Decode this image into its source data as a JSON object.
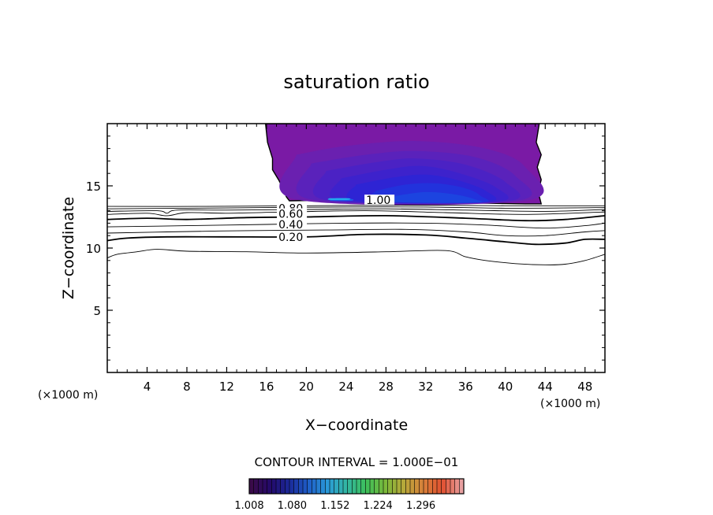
{
  "chart_data": {
    "type": "contour",
    "title": "saturation ratio",
    "xlabel": "X−coordinate",
    "ylabel": "Z−coordinate",
    "x_unit": "(×1000 m)",
    "y_unit": "(×1000 m)",
    "xlim": [
      0,
      50
    ],
    "ylim": [
      0,
      20
    ],
    "x_ticks": [
      "4",
      "8",
      "12",
      "16",
      "20",
      "24",
      "28",
      "32",
      "36",
      "40",
      "44",
      "48"
    ],
    "y_ticks": [
      "5",
      "10",
      "15"
    ],
    "contour_interval_text": "CONTOUR INTERVAL = 1.000E−01",
    "contour_labels": [
      "0.80",
      "0.60",
      "0.40",
      "0.20",
      "1.00"
    ],
    "line_contours": [
      {
        "level": 0.1,
        "weight": "thin",
        "points": [
          [
            0,
            9.2
          ],
          [
            1,
            9.5
          ],
          [
            3,
            9.7
          ],
          [
            5,
            9.9
          ],
          [
            8,
            9.75
          ],
          [
            14,
            9.7
          ],
          [
            20,
            9.6
          ],
          [
            28,
            9.7
          ],
          [
            34,
            9.8
          ],
          [
            36,
            9.3
          ],
          [
            38,
            9.0
          ],
          [
            41,
            8.75
          ],
          [
            44,
            8.65
          ],
          [
            46,
            8.7
          ],
          [
            48,
            9.0
          ],
          [
            50,
            9.5
          ]
        ]
      },
      {
        "level": 0.2,
        "weight": "thick",
        "points": [
          [
            0,
            10.6
          ],
          [
            2,
            10.8
          ],
          [
            6,
            10.9
          ],
          [
            12,
            10.9
          ],
          [
            20,
            10.9
          ],
          [
            26,
            11.1
          ],
          [
            32,
            11.05
          ],
          [
            36,
            10.8
          ],
          [
            40,
            10.5
          ],
          [
            43,
            10.3
          ],
          [
            46,
            10.4
          ],
          [
            48,
            10.7
          ],
          [
            50,
            10.7
          ]
        ]
      },
      {
        "level": 0.3,
        "weight": "thin",
        "points": [
          [
            0,
            11.2
          ],
          [
            6,
            11.3
          ],
          [
            14,
            11.4
          ],
          [
            22,
            11.45
          ],
          [
            30,
            11.5
          ],
          [
            36,
            11.3
          ],
          [
            40,
            11.0
          ],
          [
            44,
            11.0
          ],
          [
            48,
            11.3
          ],
          [
            50,
            11.4
          ]
        ]
      },
      {
        "level": 0.4,
        "weight": "thin",
        "points": [
          [
            0,
            11.7
          ],
          [
            8,
            11.8
          ],
          [
            16,
            11.9
          ],
          [
            24,
            12.0
          ],
          [
            32,
            12.0
          ],
          [
            38,
            11.85
          ],
          [
            44,
            11.6
          ],
          [
            48,
            11.8
          ],
          [
            50,
            12.0
          ]
        ]
      },
      {
        "level": 0.5,
        "weight": "thick",
        "points": [
          [
            0,
            12.3
          ],
          [
            4,
            12.4
          ],
          [
            8,
            12.3
          ],
          [
            14,
            12.45
          ],
          [
            20,
            12.5
          ],
          [
            28,
            12.6
          ],
          [
            36,
            12.4
          ],
          [
            42,
            12.2
          ],
          [
            46,
            12.3
          ],
          [
            50,
            12.6
          ]
        ]
      },
      {
        "level": 0.6,
        "weight": "thin",
        "points": [
          [
            0,
            12.7
          ],
          [
            4,
            12.8
          ],
          [
            6,
            12.6
          ],
          [
            8,
            12.85
          ],
          [
            12,
            12.8
          ],
          [
            18,
            12.9
          ],
          [
            26,
            13.0
          ],
          [
            34,
            12.85
          ],
          [
            42,
            12.7
          ],
          [
            50,
            12.9
          ]
        ]
      },
      {
        "level": 0.7,
        "weight": "thin",
        "points": [
          [
            0,
            12.95
          ],
          [
            5,
            13.0
          ],
          [
            6,
            12.8
          ],
          [
            7,
            13.05
          ],
          [
            12,
            13.05
          ],
          [
            20,
            13.1
          ],
          [
            28,
            13.15
          ],
          [
            36,
            13.05
          ],
          [
            44,
            12.95
          ],
          [
            50,
            13.1
          ]
        ]
      },
      {
        "level": 0.8,
        "weight": "thin",
        "points": [
          [
            0,
            13.15
          ],
          [
            8,
            13.2
          ],
          [
            16,
            13.25
          ],
          [
            24,
            13.3
          ],
          [
            32,
            13.3
          ],
          [
            40,
            13.2
          ],
          [
            50,
            13.25
          ]
        ]
      },
      {
        "level": 0.9,
        "weight": "thin",
        "points": [
          [
            0,
            13.35
          ],
          [
            10,
            13.35
          ],
          [
            20,
            13.4
          ],
          [
            30,
            13.45
          ],
          [
            40,
            13.4
          ],
          [
            50,
            13.4
          ]
        ]
      }
    ],
    "filled_region": {
      "description": "supersaturated cloud layer",
      "boundary": [
        [
          15.9,
          20
        ],
        [
          16.1,
          18.5
        ],
        [
          16.6,
          17.2
        ],
        [
          16.6,
          16.3
        ],
        [
          17.2,
          15.5
        ],
        [
          17.4,
          15.2
        ],
        [
          18.0,
          14.1
        ],
        [
          18.3,
          13.8
        ],
        [
          22,
          13.85
        ],
        [
          26,
          13.8
        ],
        [
          30,
          13.8
        ],
        [
          34,
          13.7
        ],
        [
          38,
          13.6
        ],
        [
          42,
          13.55
        ],
        [
          43.6,
          13.55
        ],
        [
          43.3,
          14.5
        ],
        [
          43.6,
          15.5
        ],
        [
          43.2,
          16.5
        ],
        [
          43.6,
          17.5
        ],
        [
          43.1,
          18.5
        ],
        [
          43.4,
          20
        ]
      ],
      "bands": [
        {
          "value": 1.008,
          "color": "#7a1aa5",
          "points": [
            [
              17,
              20
            ],
            [
              42.5,
              20
            ],
            [
              42.5,
              13.7
            ],
            [
              18.5,
              13.8
            ]
          ]
        },
        {
          "value": 1.02,
          "color": "#6a20b0",
          "points": [
            [
              19,
              17.5
            ],
            [
              24,
              18.2
            ],
            [
              31,
              18.6
            ],
            [
              38,
              18.0
            ],
            [
              42,
              16.5
            ],
            [
              42,
              13.8
            ],
            [
              19,
              13.9
            ]
          ]
        },
        {
          "value": 1.04,
          "color": "#5a22bb",
          "points": [
            [
              20.5,
              16.8
            ],
            [
              26,
              17.5
            ],
            [
              31,
              17.8
            ],
            [
              37,
              17.3
            ],
            [
              41,
              15.8
            ],
            [
              41,
              13.8
            ],
            [
              20.5,
              13.9
            ]
          ]
        },
        {
          "value": 1.06,
          "color": "#4b22c4",
          "points": [
            [
              22,
              16.2
            ],
            [
              27,
              16.9
            ],
            [
              31,
              17.2
            ],
            [
              36,
              16.7
            ],
            [
              40,
              15.3
            ],
            [
              40,
              13.75
            ],
            [
              22,
              13.85
            ]
          ]
        },
        {
          "value": 1.08,
          "color": "#3d22cc",
          "points": [
            [
              23.5,
              15.6
            ],
            [
              28,
              16.3
            ],
            [
              31.5,
              16.6
            ],
            [
              35,
              16.1
            ],
            [
              39,
              14.9
            ],
            [
              39,
              13.7
            ],
            [
              23.5,
              13.8
            ]
          ]
        },
        {
          "value": 1.1,
          "color": "#2e24d4",
          "points": [
            [
              25,
              15.1
            ],
            [
              29,
              15.7
            ],
            [
              32,
              15.9
            ],
            [
              35,
              15.5
            ],
            [
              38,
              14.6
            ],
            [
              38,
              13.7
            ],
            [
              25,
              13.8
            ]
          ]
        },
        {
          "value": 1.12,
          "color": "#2232dc",
          "points": [
            [
              27,
              14.6
            ],
            [
              30,
              15.1
            ],
            [
              33,
              15.2
            ],
            [
              36,
              14.8
            ],
            [
              37.5,
              14.2
            ],
            [
              37.5,
              13.65
            ],
            [
              27,
              13.75
            ]
          ]
        },
        {
          "value": 1.14,
          "color": "#1c44e0",
          "points": [
            [
              29,
              14.2
            ],
            [
              32,
              14.5
            ],
            [
              35,
              14.3
            ],
            [
              37,
              13.9
            ],
            [
              37,
              13.65
            ],
            [
              29,
              13.7
            ]
          ]
        },
        {
          "value": 1.16,
          "color": "#1b5ce6",
          "points": [
            [
              22.5,
              13.95
            ],
            [
              24.5,
              13.95
            ],
            [
              24.5,
              13.8
            ],
            [
              22.5,
              13.8
            ]
          ]
        },
        {
          "value": 1.2,
          "color": "#22b0f0",
          "points": [
            [
              22.3,
              14.0
            ],
            [
              24.2,
              14.0
            ],
            [
              24.2,
              13.88
            ],
            [
              22.3,
              13.88
            ]
          ]
        }
      ]
    },
    "colorbar": {
      "min": 1.008,
      "max": 1.368,
      "tick_labels": [
        "1.008",
        "1.080",
        "1.152",
        "1.224",
        "1.296"
      ],
      "colors": [
        "#3a0b4a",
        "#240a6a",
        "#1b2a9a",
        "#1f5fc8",
        "#2a9ad8",
        "#33b6a0",
        "#3cbf5a",
        "#7ab83a",
        "#b8a83a",
        "#d8803a",
        "#e05030",
        "#e8a0a0"
      ]
    }
  }
}
